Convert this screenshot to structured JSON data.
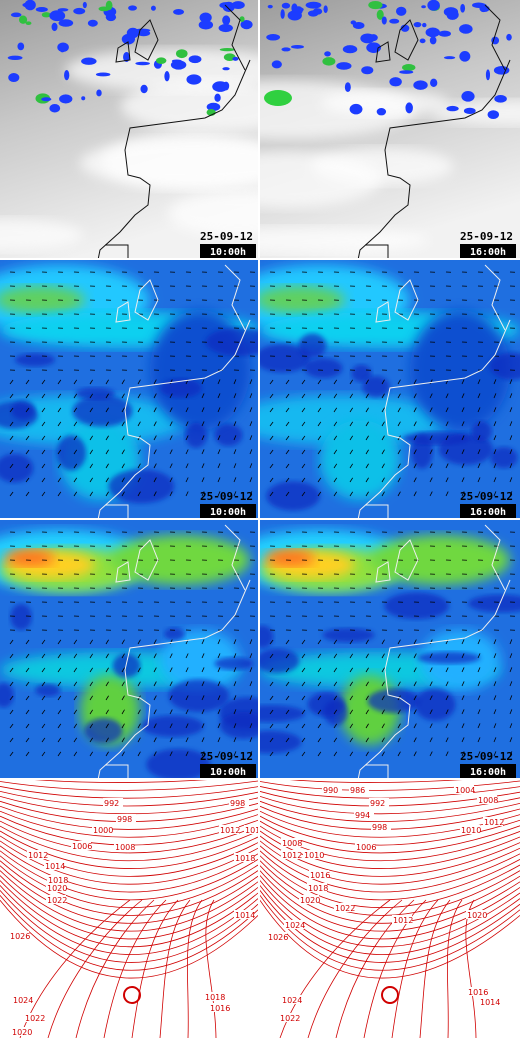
{
  "rows": [
    {
      "kind": "satellite",
      "panels": [
        {
          "date": "25-09-12",
          "time": "10:00h"
        },
        {
          "date": "25-09-12",
          "time": "16:00h"
        }
      ]
    },
    {
      "kind": "wind",
      "panels": [
        {
          "date": "25-09-12",
          "time": "10:00h"
        },
        {
          "date": "25-09-12",
          "time": "16:00h"
        }
      ]
    },
    {
      "kind": "wind-strong",
      "panels": [
        {
          "date": "25-09-12",
          "time": "10:00h"
        },
        {
          "date": "25-09-12",
          "time": "16:00h"
        }
      ]
    },
    {
      "kind": "isobars",
      "panels": [
        {
          "labels": [
            "992",
            "998",
            "1000",
            "1006",
            "1008",
            "1012",
            "1014",
            "1018",
            "1020",
            "1022",
            "1026",
            "1024",
            "1022",
            "1020",
            "1012",
            "1016",
            "1018",
            "1014",
            "1018",
            "1016",
            "998"
          ]
        },
        {
          "labels": [
            "990",
            "986",
            "992",
            "994",
            "998",
            "1004",
            "1008",
            "1006",
            "1010",
            "1012",
            "1008",
            "1012",
            "1010",
            "1016",
            "1018",
            "1020",
            "1022",
            "1026",
            "1024",
            "1024",
            "1022",
            "1020",
            "1016",
            "1014",
            "1012"
          ]
        }
      ]
    }
  ]
}
